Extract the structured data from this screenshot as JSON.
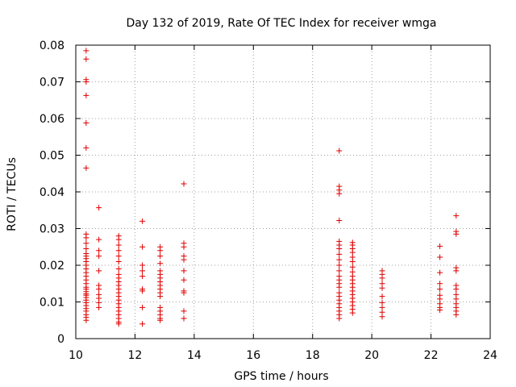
{
  "chart_data": {
    "type": "scatter",
    "title": "Day 132 of 2019, Rate Of TEC Index for receiver wmga",
    "xlabel": "GPS time / hours",
    "ylabel": "ROTI / TECUs",
    "xlim": [
      10,
      24
    ],
    "ylim": [
      0,
      0.08
    ],
    "xticks": [
      10,
      12,
      14,
      16,
      18,
      20,
      22,
      24
    ],
    "xtick_labels": [
      "10",
      "12",
      "14",
      "16",
      "18",
      "20",
      "22",
      "24"
    ],
    "yticks": [
      0,
      0.01,
      0.02,
      0.03,
      0.04,
      0.05,
      0.06,
      0.07,
      0.08
    ],
    "ytick_labels": [
      "0",
      "0.01",
      "0.02",
      "0.03",
      "0.04",
      "0.05",
      "0.06",
      "0.07",
      "0.08"
    ],
    "grid": true,
    "marker": "+",
    "color": "#e00000",
    "series": [
      {
        "name": "ROTI",
        "points": [
          [
            10.35,
            0.0785
          ],
          [
            10.35,
            0.0762
          ],
          [
            10.35,
            0.0706
          ],
          [
            10.35,
            0.07
          ],
          [
            10.35,
            0.0663
          ],
          [
            10.35,
            0.0588
          ],
          [
            10.35,
            0.052
          ],
          [
            10.35,
            0.0465
          ],
          [
            10.35,
            0.0285
          ],
          [
            10.35,
            0.0275
          ],
          [
            10.35,
            0.026
          ],
          [
            10.35,
            0.0245
          ],
          [
            10.35,
            0.0232
          ],
          [
            10.35,
            0.0225
          ],
          [
            10.35,
            0.0218
          ],
          [
            10.35,
            0.021
          ],
          [
            10.35,
            0.02
          ],
          [
            10.35,
            0.019
          ],
          [
            10.35,
            0.018
          ],
          [
            10.35,
            0.017
          ],
          [
            10.35,
            0.016
          ],
          [
            10.35,
            0.015
          ],
          [
            10.35,
            0.014
          ],
          [
            10.35,
            0.0135
          ],
          [
            10.35,
            0.0128
          ],
          [
            10.35,
            0.0122
          ],
          [
            10.35,
            0.0118
          ],
          [
            10.35,
            0.0112
          ],
          [
            10.35,
            0.0105
          ],
          [
            10.35,
            0.0098
          ],
          [
            10.35,
            0.009
          ],
          [
            10.35,
            0.0082
          ],
          [
            10.35,
            0.0075
          ],
          [
            10.35,
            0.0065
          ],
          [
            10.35,
            0.0058
          ],
          [
            10.35,
            0.005
          ],
          [
            10.78,
            0.0357
          ],
          [
            10.78,
            0.027
          ],
          [
            10.78,
            0.024
          ],
          [
            10.78,
            0.0225
          ],
          [
            10.78,
            0.0185
          ],
          [
            10.78,
            0.0145
          ],
          [
            10.78,
            0.0135
          ],
          [
            10.78,
            0.012
          ],
          [
            10.78,
            0.011
          ],
          [
            10.78,
            0.0098
          ],
          [
            10.78,
            0.0085
          ],
          [
            11.45,
            0.028
          ],
          [
            11.45,
            0.027
          ],
          [
            11.45,
            0.0255
          ],
          [
            11.45,
            0.024
          ],
          [
            11.45,
            0.0225
          ],
          [
            11.45,
            0.021
          ],
          [
            11.45,
            0.019
          ],
          [
            11.45,
            0.0175
          ],
          [
            11.45,
            0.0165
          ],
          [
            11.45,
            0.0155
          ],
          [
            11.45,
            0.0145
          ],
          [
            11.45,
            0.0135
          ],
          [
            11.45,
            0.0125
          ],
          [
            11.45,
            0.0115
          ],
          [
            11.45,
            0.0105
          ],
          [
            11.45,
            0.0095
          ],
          [
            11.45,
            0.0085
          ],
          [
            11.45,
            0.0075
          ],
          [
            11.45,
            0.0065
          ],
          [
            11.45,
            0.0055
          ],
          [
            11.45,
            0.0045
          ],
          [
            11.45,
            0.004
          ],
          [
            12.25,
            0.032
          ],
          [
            12.25,
            0.025
          ],
          [
            12.25,
            0.02
          ],
          [
            12.25,
            0.0185
          ],
          [
            12.25,
            0.017
          ],
          [
            12.25,
            0.0135
          ],
          [
            12.25,
            0.013
          ],
          [
            12.25,
            0.0085
          ],
          [
            12.25,
            0.004
          ],
          [
            12.85,
            0.025
          ],
          [
            12.85,
            0.024
          ],
          [
            12.85,
            0.0225
          ],
          [
            12.85,
            0.0205
          ],
          [
            12.85,
            0.0185
          ],
          [
            12.85,
            0.0175
          ],
          [
            12.85,
            0.0165
          ],
          [
            12.85,
            0.0155
          ],
          [
            12.85,
            0.0145
          ],
          [
            12.85,
            0.0135
          ],
          [
            12.85,
            0.0125
          ],
          [
            12.85,
            0.0115
          ],
          [
            12.85,
            0.0085
          ],
          [
            12.85,
            0.0075
          ],
          [
            12.85,
            0.0065
          ],
          [
            12.85,
            0.0055
          ],
          [
            12.85,
            0.005
          ],
          [
            13.65,
            0.0422
          ],
          [
            13.65,
            0.026
          ],
          [
            13.65,
            0.025
          ],
          [
            13.65,
            0.0225
          ],
          [
            13.65,
            0.0215
          ],
          [
            13.65,
            0.0185
          ],
          [
            13.65,
            0.016
          ],
          [
            13.65,
            0.013
          ],
          [
            13.65,
            0.0125
          ],
          [
            13.65,
            0.0075
          ],
          [
            13.65,
            0.0055
          ],
          [
            18.9,
            0.0512
          ],
          [
            18.9,
            0.0415
          ],
          [
            18.9,
            0.0405
          ],
          [
            18.9,
            0.0395
          ],
          [
            18.9,
            0.0322
          ],
          [
            18.9,
            0.0265
          ],
          [
            18.9,
            0.0255
          ],
          [
            18.9,
            0.0245
          ],
          [
            18.9,
            0.023
          ],
          [
            18.9,
            0.0215
          ],
          [
            18.9,
            0.02
          ],
          [
            18.9,
            0.0185
          ],
          [
            18.9,
            0.017
          ],
          [
            18.9,
            0.016
          ],
          [
            18.9,
            0.015
          ],
          [
            18.9,
            0.014
          ],
          [
            18.9,
            0.0125
          ],
          [
            18.9,
            0.0115
          ],
          [
            18.9,
            0.0105
          ],
          [
            18.9,
            0.0095
          ],
          [
            18.9,
            0.0085
          ],
          [
            18.9,
            0.0075
          ],
          [
            18.9,
            0.0065
          ],
          [
            18.9,
            0.0055
          ],
          [
            19.35,
            0.0262
          ],
          [
            19.35,
            0.0255
          ],
          [
            19.35,
            0.0245
          ],
          [
            19.35,
            0.0235
          ],
          [
            19.35,
            0.0222
          ],
          [
            19.35,
            0.021
          ],
          [
            19.35,
            0.0195
          ],
          [
            19.35,
            0.0182
          ],
          [
            19.35,
            0.017
          ],
          [
            19.35,
            0.016
          ],
          [
            19.35,
            0.015
          ],
          [
            19.35,
            0.014
          ],
          [
            19.35,
            0.013
          ],
          [
            19.35,
            0.012
          ],
          [
            19.35,
            0.011
          ],
          [
            19.35,
            0.01
          ],
          [
            19.35,
            0.009
          ],
          [
            19.35,
            0.008
          ],
          [
            19.35,
            0.007
          ],
          [
            20.35,
            0.0185
          ],
          [
            20.35,
            0.0175
          ],
          [
            20.35,
            0.0165
          ],
          [
            20.35,
            0.015
          ],
          [
            20.35,
            0.0138
          ],
          [
            20.35,
            0.0115
          ],
          [
            20.35,
            0.0098
          ],
          [
            20.35,
            0.0085
          ],
          [
            20.35,
            0.0072
          ],
          [
            20.35,
            0.006
          ],
          [
            22.3,
            0.0252
          ],
          [
            22.3,
            0.0222
          ],
          [
            22.3,
            0.018
          ],
          [
            22.3,
            0.015
          ],
          [
            22.3,
            0.0135
          ],
          [
            22.3,
            0.0118
          ],
          [
            22.3,
            0.0108
          ],
          [
            22.3,
            0.0095
          ],
          [
            22.3,
            0.0085
          ],
          [
            22.3,
            0.0078
          ],
          [
            22.85,
            0.0335
          ],
          [
            22.85,
            0.0292
          ],
          [
            22.85,
            0.0285
          ],
          [
            22.85,
            0.0193
          ],
          [
            22.85,
            0.0185
          ],
          [
            22.85,
            0.0145
          ],
          [
            22.85,
            0.0135
          ],
          [
            22.85,
            0.012
          ],
          [
            22.85,
            0.0108
          ],
          [
            22.85,
            0.0095
          ],
          [
            22.85,
            0.0085
          ],
          [
            22.85,
            0.0075
          ],
          [
            22.85,
            0.0065
          ]
        ]
      }
    ]
  }
}
